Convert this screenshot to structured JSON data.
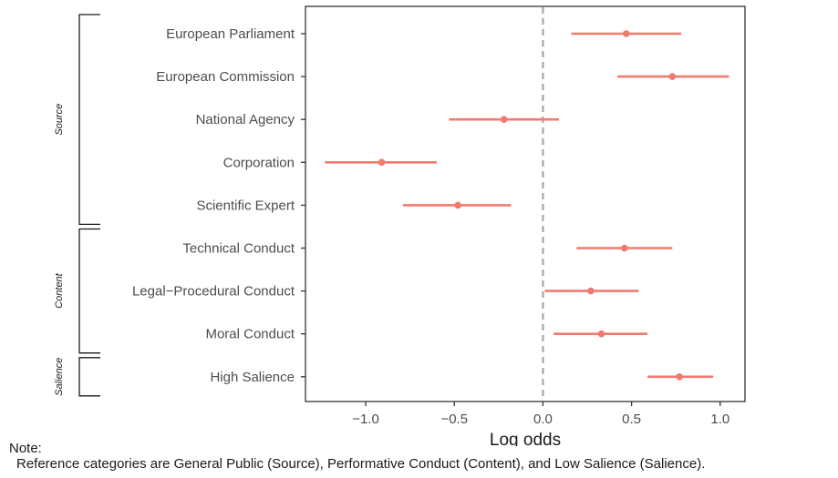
{
  "chart_data": {
    "type": "coefficient-plot",
    "xlabel": "Log odds",
    "xlim": [
      -1.34,
      1.14
    ],
    "xticks": [
      -1.0,
      -0.5,
      0.0,
      0.5,
      1.0
    ],
    "xtick_labels": [
      "−1.0",
      "−0.5",
      "0.0",
      "0.5",
      "1.0"
    ],
    "reference_line": 0,
    "reference_line_style": "dashed",
    "point_color": "#f07a6e",
    "grid": false,
    "groups": [
      {
        "label": "Source",
        "items": [
          "European Parliament",
          "European Commission",
          "National Agency",
          "Corporation",
          "Scientific Expert"
        ]
      },
      {
        "label": "Content",
        "items": [
          "Technical Conduct",
          "Legal−Procedural Conduct",
          "Moral Conduct"
        ]
      },
      {
        "label": "Salience",
        "items": [
          "High Salience"
        ]
      }
    ],
    "categories": [
      "European Parliament",
      "European Commission",
      "National Agency",
      "Corporation",
      "Scientific Expert",
      "Technical Conduct",
      "Legal−Procedural Conduct",
      "Moral Conduct",
      "High Salience"
    ],
    "estimates": [
      0.47,
      0.73,
      -0.22,
      -0.91,
      -0.48,
      0.46,
      0.27,
      0.33,
      0.77
    ],
    "ci_low": [
      0.16,
      0.42,
      -0.53,
      -1.23,
      -0.79,
      0.19,
      0.01,
      0.06,
      0.59
    ],
    "ci_high": [
      0.78,
      1.05,
      0.09,
      -0.6,
      -0.18,
      0.73,
      0.54,
      0.59,
      0.96
    ]
  },
  "note": {
    "heading": "Note:",
    "text": "Reference categories are General Public (Source), Performative Conduct (Content), and Low Salience (Salience)."
  }
}
